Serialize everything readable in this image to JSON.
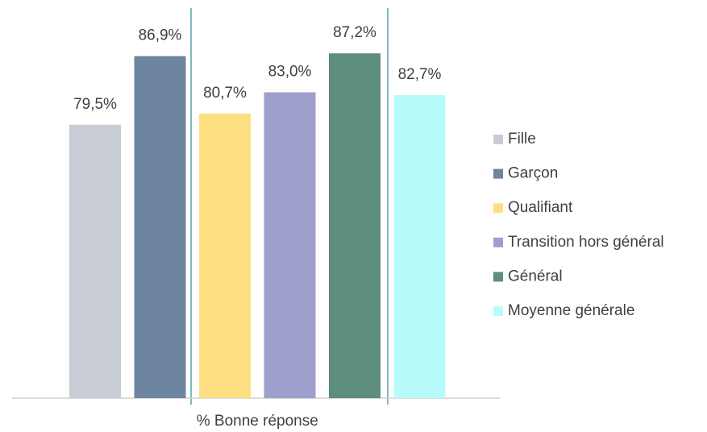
{
  "chart_data": {
    "type": "bar",
    "categories": [
      "% Bonne réponse"
    ],
    "series": [
      {
        "name": "Fille",
        "color": "#c8cdd5",
        "values": [
          79.5
        ],
        "value_labels": [
          "79,5%"
        ]
      },
      {
        "name": "Garçon",
        "color": "#6e85a0",
        "values": [
          86.9
        ],
        "value_labels": [
          "86,9%"
        ]
      },
      {
        "name": "Qualifiant",
        "color": "#fddf82",
        "values": [
          80.7
        ],
        "value_labels": [
          "80,7%"
        ]
      },
      {
        "name": "Transition hors général",
        "color": "#9e9fcc",
        "values": [
          83.0
        ],
        "value_labels": [
          "83,0%"
        ]
      },
      {
        "name": "Général",
        "color": "#5f8d7c",
        "values": [
          87.2
        ],
        "value_labels": [
          "87,2%"
        ]
      },
      {
        "name": "Moyenne générale",
        "color": "#b8fbfb",
        "values": [
          82.7
        ],
        "value_labels": [
          "82,7%"
        ]
      }
    ],
    "ylim": [
      50,
      90
    ],
    "legend": "right"
  }
}
